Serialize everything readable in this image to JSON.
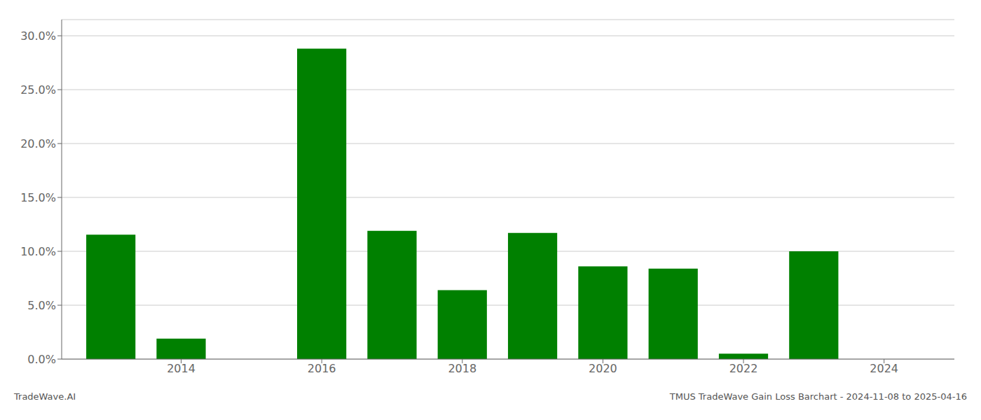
{
  "chart_data": {
    "type": "bar",
    "x": [
      2013,
      2014,
      2015,
      2016,
      2017,
      2018,
      2019,
      2020,
      2021,
      2022,
      2023,
      2024
    ],
    "values": [
      0.1155,
      0.019,
      0.0,
      0.288,
      0.119,
      0.064,
      0.117,
      0.086,
      0.084,
      0.005,
      0.1,
      0.0
    ],
    "color": "#008000",
    "xlim": [
      2012.3,
      2025.0
    ],
    "xticks": [
      2014,
      2016,
      2018,
      2020,
      2022,
      2024
    ],
    "ylim": [
      0,
      0.315
    ],
    "yticks": [
      {
        "value": 0.0,
        "label": "0.0%"
      },
      {
        "value": 0.05,
        "label": "5.0%"
      },
      {
        "value": 0.1,
        "label": "10.0%"
      },
      {
        "value": 0.15,
        "label": "15.0%"
      },
      {
        "value": 0.2,
        "label": "20.0%"
      },
      {
        "value": 0.25,
        "label": "25.0%"
      },
      {
        "value": 0.3,
        "label": "30.0%"
      }
    ],
    "grid": true,
    "annotations": [
      "TradeWave.AI",
      "TMUS TradeWave Gain Loss Barchart - 2024-11-08 to 2025-04-16"
    ]
  }
}
